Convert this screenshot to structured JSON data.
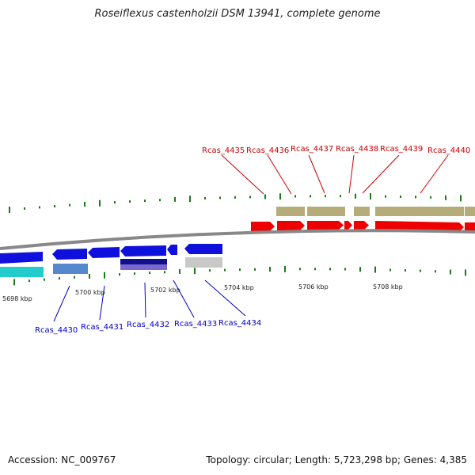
{
  "title": "Roseiflexus castenholzii DSM 13941, complete genome",
  "footer": {
    "accession": "Accession: NC_009767",
    "summary": "Topology: circular; Length: 5,723,298 bp; Genes: 4,385"
  },
  "colors": {
    "forward_cds": "#ee0000",
    "forward_gene": "#b5ac7a",
    "reverse_cds": "#1010dd",
    "backbone": "#888888",
    "gc_tick": "#1a7a1a",
    "top_label": "#cc0000",
    "bottom_label": "#0000cc"
  },
  "scale": {
    "unit": "kbp",
    "ticks": [
      "5698 kbp",
      "5700 kbp",
      "5702 kbp",
      "5704 kbp",
      "5706 kbp",
      "5708 kbp"
    ]
  },
  "genes": {
    "forward": [
      "Rcas_4435",
      "Rcas_4436",
      "Rcas_4437",
      "Rcas_4438",
      "Rcas_4439",
      "Rcas_4440"
    ],
    "reverse": [
      "Rcas_4430",
      "Rcas_4431",
      "Rcas_4432",
      "Rcas_4433",
      "Rcas_4434"
    ]
  }
}
